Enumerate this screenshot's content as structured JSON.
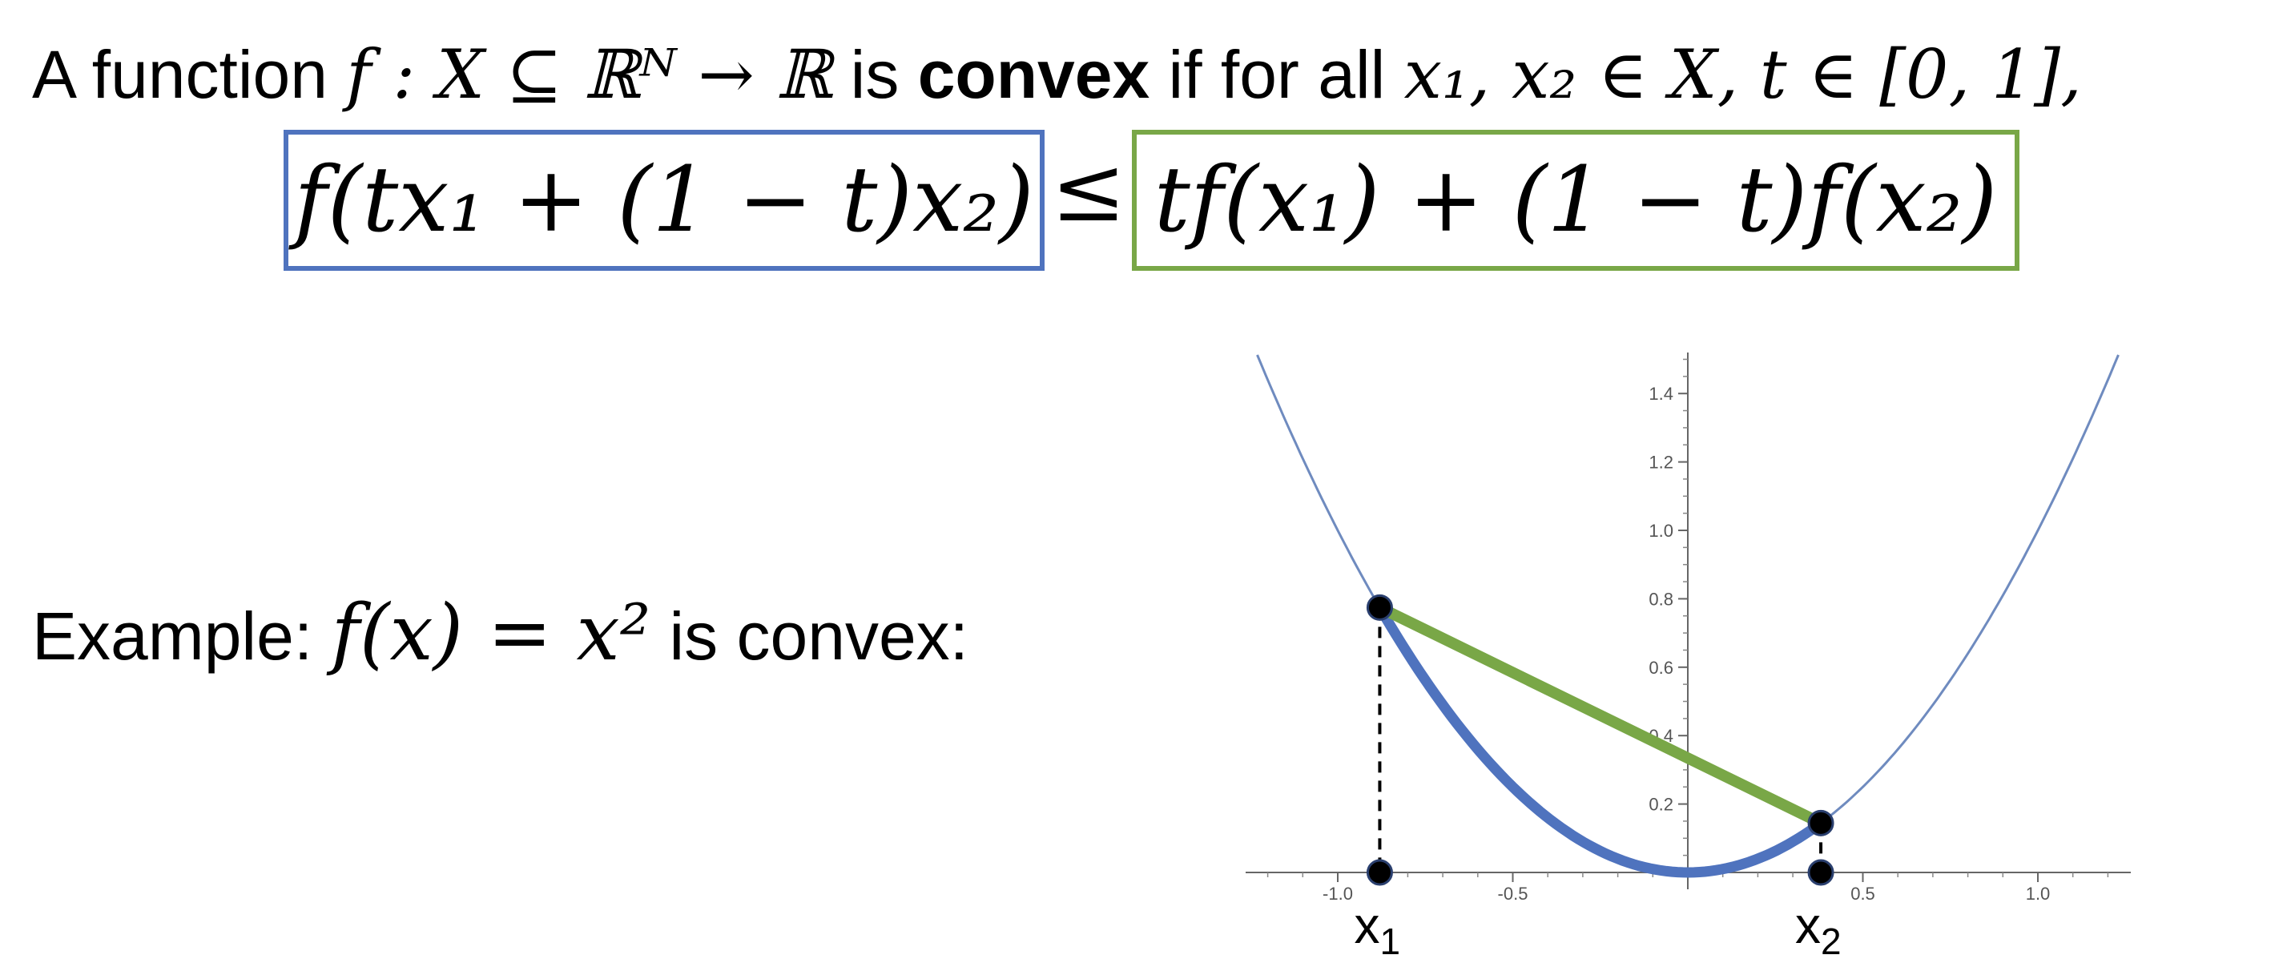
{
  "definition": {
    "prefix": "A function",
    "signature": "f : X ⊆ ℝᴺ → ℝ",
    "is_word": "is",
    "bold_word": "convex",
    "condition": "if for all",
    "quantifier": "x₁, x₂ ∈ X, t ∈ [0, 1],"
  },
  "inequality": {
    "lhs": "f(tx₁ + (1 − t)x₂)",
    "relation": "≤",
    "rhs": "tf(x₁) + (1 − t)f(x₂)",
    "lhs_box_color": "#4f73be",
    "rhs_box_color": "#79a747"
  },
  "example": {
    "label": "Example:",
    "formula": "f(x) = x²",
    "suffix": "is convex:"
  },
  "chart_data": {
    "type": "line",
    "function": "x^2",
    "xlim": [
      -1.23,
      1.23
    ],
    "ylim": [
      0,
      1.5
    ],
    "x_ticks": [
      -1.0,
      -0.5,
      0.5,
      1.0
    ],
    "x_tick_labels": [
      "-1.0",
      "-0.5",
      "0.5",
      "1.0"
    ],
    "y_ticks": [
      0.2,
      0.4,
      0.6,
      0.8,
      1.0,
      1.2,
      1.4
    ],
    "y_tick_labels": [
      "0.2",
      "0.4",
      "0.6",
      "0.8",
      "1.0",
      "1.2",
      "1.4"
    ],
    "points": {
      "x1": -0.88,
      "x2": 0.38
    },
    "point_labels": {
      "x1": "x",
      "x1_sub": "1",
      "x2": "x",
      "x2_sub": "2"
    },
    "colors": {
      "curve": "#6f8bbf",
      "arc": "#4f73be",
      "chord": "#79a747"
    }
  }
}
